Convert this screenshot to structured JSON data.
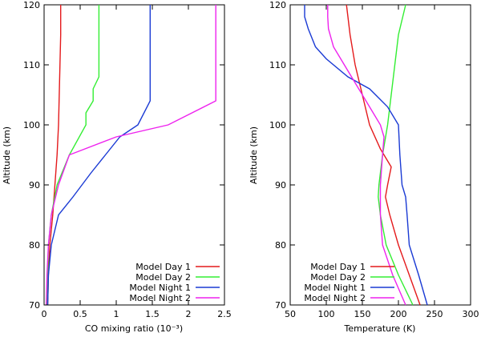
{
  "chart_data": [
    {
      "type": "line",
      "xlabel": "CO mixing ratio (10⁻³)",
      "ylabel": "Altitude (km)",
      "xlim": [
        0,
        2.5
      ],
      "ylim": [
        70,
        120
      ],
      "xticks": [
        0,
        0.5,
        1,
        1.5,
        2,
        2.5
      ],
      "xtick_labels": [
        "0",
        "0.5",
        "1",
        "1.5",
        "2",
        "2.5"
      ],
      "yticks": [
        70,
        80,
        90,
        100,
        110,
        120
      ],
      "ytick_labels": [
        "70",
        "80",
        "90",
        "100",
        "110",
        "120"
      ],
      "grid": false,
      "legend_position": "bottom-right",
      "series": [
        {
          "name": "Model Day 1",
          "color": "#e41a1c",
          "points": [
            [
              0.05,
              70
            ],
            [
              0.06,
              75
            ],
            [
              0.08,
              80
            ],
            [
              0.12,
              85
            ],
            [
              0.15,
              90
            ],
            [
              0.18,
              95
            ],
            [
              0.2,
              100
            ],
            [
              0.21,
              105
            ],
            [
              0.22,
              110
            ],
            [
              0.23,
              115
            ],
            [
              0.23,
              120
            ]
          ]
        },
        {
          "name": "Model Day 2",
          "color": "#33ee33",
          "points": [
            [
              0.04,
              70
            ],
            [
              0.05,
              75
            ],
            [
              0.06,
              80
            ],
            [
              0.1,
              85
            ],
            [
              0.18,
              90
            ],
            [
              0.35,
              95
            ],
            [
              0.58,
              100
            ],
            [
              0.58,
              102
            ],
            [
              0.68,
              104
            ],
            [
              0.68,
              106
            ],
            [
              0.76,
              108
            ],
            [
              0.76,
              120
            ]
          ]
        },
        {
          "name": "Model Night 1",
          "color": "#1a3ad4",
          "points": [
            [
              0.05,
              70
            ],
            [
              0.06,
              75
            ],
            [
              0.1,
              80
            ],
            [
              0.2,
              85
            ],
            [
              0.4,
              88
            ],
            [
              0.65,
              92
            ],
            [
              0.85,
              95
            ],
            [
              1.05,
              98
            ],
            [
              1.3,
              100
            ],
            [
              1.47,
              104
            ],
            [
              1.47,
              120
            ]
          ]
        },
        {
          "name": "Model Night 2",
          "color": "#ee22ee",
          "points": [
            [
              0.03,
              70
            ],
            [
              0.04,
              75
            ],
            [
              0.06,
              80
            ],
            [
              0.1,
              85
            ],
            [
              0.2,
              90
            ],
            [
              0.35,
              95
            ],
            [
              1.0,
              98
            ],
            [
              1.72,
              100
            ],
            [
              2.38,
              104
            ],
            [
              2.38,
              120
            ]
          ]
        }
      ]
    },
    {
      "type": "line",
      "xlabel": "Temperature (K)",
      "ylabel": "Altitude (km)",
      "xlim": [
        50,
        300
      ],
      "ylim": [
        70,
        120
      ],
      "xticks": [
        50,
        100,
        150,
        200,
        250,
        300
      ],
      "xtick_labels": [
        "50",
        "100",
        "150",
        "200",
        "250",
        "300"
      ],
      "yticks": [
        70,
        80,
        90,
        100,
        110,
        120
      ],
      "ytick_labels": [
        "70",
        "80",
        "90",
        "100",
        "110",
        "120"
      ],
      "grid": false,
      "legend_position": "bottom-left",
      "series": [
        {
          "name": "Model Day 1",
          "color": "#e41a1c",
          "points": [
            [
              230,
              70
            ],
            [
              215,
              75
            ],
            [
              200,
              80
            ],
            [
              188,
              85
            ],
            [
              182,
              88
            ],
            [
              185,
              90
            ],
            [
              190,
              93
            ],
            [
              175,
              96
            ],
            [
              160,
              100
            ],
            [
              150,
              105
            ],
            [
              140,
              110
            ],
            [
              133,
              115
            ],
            [
              130,
              118
            ],
            [
              128,
              120
            ]
          ]
        },
        {
          "name": "Model Day 2",
          "color": "#33ee33",
          "points": [
            [
              220,
              70
            ],
            [
              200,
              75
            ],
            [
              183,
              80
            ],
            [
              175,
              85
            ],
            [
              172,
              88
            ],
            [
              173,
              90
            ],
            [
              178,
              95
            ],
            [
              185,
              100
            ],
            [
              190,
              105
            ],
            [
              195,
              110
            ],
            [
              200,
              115
            ],
            [
              210,
              120
            ]
          ]
        },
        {
          "name": "Model Night 1",
          "color": "#1a3ad4",
          "points": [
            [
              240,
              70
            ],
            [
              228,
              75
            ],
            [
              215,
              80
            ],
            [
              212,
              85
            ],
            [
              210,
              88
            ],
            [
              205,
              90
            ],
            [
              202,
              95
            ],
            [
              200,
              100
            ],
            [
              185,
              103
            ],
            [
              160,
              106
            ],
            [
              130,
              108
            ],
            [
              100,
              111
            ],
            [
              85,
              113
            ],
            [
              75,
              116
            ],
            [
              70,
              118
            ],
            [
              70,
              120
            ]
          ]
        },
        {
          "name": "Model Night 2",
          "color": "#ee22ee",
          "points": [
            [
              210,
              70
            ],
            [
              192,
              75
            ],
            [
              178,
              80
            ],
            [
              175,
              85
            ],
            [
              175,
              90
            ],
            [
              178,
              95
            ],
            [
              180,
              98
            ],
            [
              175,
              100
            ],
            [
              160,
              103
            ],
            [
              140,
              107
            ],
            [
              125,
              110
            ],
            [
              110,
              113
            ],
            [
              103,
              116
            ],
            [
              102,
              118
            ],
            [
              102,
              120
            ]
          ]
        }
      ]
    }
  ]
}
